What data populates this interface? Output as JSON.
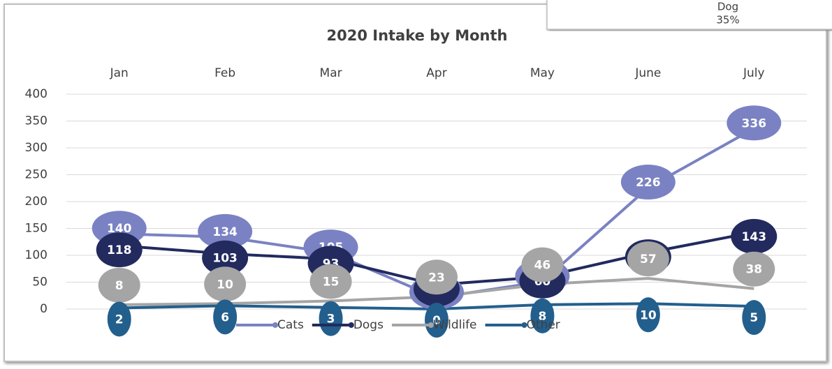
{
  "chart_data": {
    "type": "line",
    "title": "2020 Intake by Month",
    "categories": [
      "Jan",
      "Feb",
      "Mar",
      "Apr",
      "May",
      "June",
      "July"
    ],
    "series": [
      {
        "name": "Cats",
        "color": "#7a82c3",
        "values": [
          140,
          134,
          105,
          21,
          51,
          226,
          336
        ]
      },
      {
        "name": "Dogs",
        "color": "#222a5e",
        "values": [
          118,
          103,
          93,
          45,
          60,
          105,
          143
        ]
      },
      {
        "name": "Wildlife",
        "color": "#a5a5a5",
        "values": [
          8,
          10,
          15,
          23,
          46,
          57,
          38
        ]
      },
      {
        "name": "Other",
        "color": "#235f8d",
        "values": [
          2,
          6,
          3,
          0,
          8,
          10,
          5
        ]
      }
    ],
    "ylim": [
      0,
      400
    ],
    "yticks": [
      0,
      50,
      100,
      150,
      200,
      250,
      300,
      350,
      400
    ],
    "grid": true,
    "legend": "bottom",
    "overlay_labels": [
      "Dog",
      "35%"
    ]
  }
}
